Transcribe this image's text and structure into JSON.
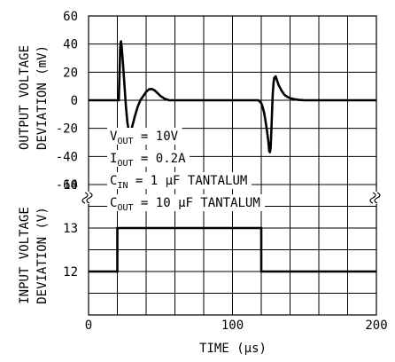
{
  "chart_data": [
    {
      "type": "line",
      "ylabel_lines": [
        "OUTPUT VOLTAGE",
        "DEVIATION (mV)"
      ],
      "ylim": [
        -60,
        60
      ],
      "yticks": [
        "60",
        "40",
        "20",
        "0",
        "-20",
        "-40",
        "-60"
      ],
      "grid": true,
      "series": [
        {
          "x": [
            0,
            21,
            21.5,
            22,
            22.5,
            23,
            24,
            25,
            26,
            27,
            28,
            30,
            32,
            34,
            36,
            38,
            40,
            42,
            44,
            46,
            48,
            50,
            53,
            56,
            60,
            70,
            80,
            90,
            100,
            110,
            118,
            120,
            121,
            122,
            123,
            124,
            125,
            125.5,
            126,
            126.5,
            127,
            127.5,
            128,
            128.5,
            129,
            130,
            131,
            132,
            134,
            136,
            138,
            140,
            143,
            146,
            150,
            160,
            170,
            180,
            190,
            200
          ],
          "y": [
            0,
            0,
            18,
            38,
            42,
            38,
            25,
            10,
            -5,
            -16,
            -22,
            -20,
            -12,
            -5,
            0,
            3,
            6,
            7.8,
            8,
            7,
            5,
            3,
            1,
            0,
            0,
            0,
            0,
            0,
            0,
            0,
            0,
            -2,
            -5,
            -9,
            -15,
            -22,
            -30,
            -36,
            -37,
            -34,
            -22,
            -8,
            5,
            12,
            16,
            17,
            14,
            11,
            7,
            4,
            2.5,
            1.5,
            0.8,
            0.3,
            0,
            0,
            0,
            0,
            0,
            0
          ]
        }
      ],
      "annotations": [
        {
          "main": "V",
          "sub": "OUT",
          "rest": " = 10V"
        },
        {
          "main": "I",
          "sub": "OUT",
          "rest": " = 0.2A"
        },
        {
          "main": "C",
          "sub": "IN",
          "rest": " = 1 μF TANTALUM"
        },
        {
          "main": "C",
          "sub": "OUT",
          "rest": " = 10 μF TANTALUM"
        }
      ]
    },
    {
      "type": "line",
      "ylabel_lines": [
        "INPUT VOLTAGE",
        "DEVIATION (V)"
      ],
      "ylim": [
        11,
        14
      ],
      "yticks": [
        "14",
        "13",
        "12"
      ],
      "xlabel": "TIME (μs)",
      "xlim": [
        0,
        200
      ],
      "xticks": [
        "0",
        "100",
        "200"
      ],
      "grid": true,
      "series": [
        {
          "x": [
            0,
            20,
            20,
            120,
            120,
            200
          ],
          "y": [
            12,
            12,
            13,
            13,
            12,
            12
          ]
        }
      ]
    }
  ]
}
